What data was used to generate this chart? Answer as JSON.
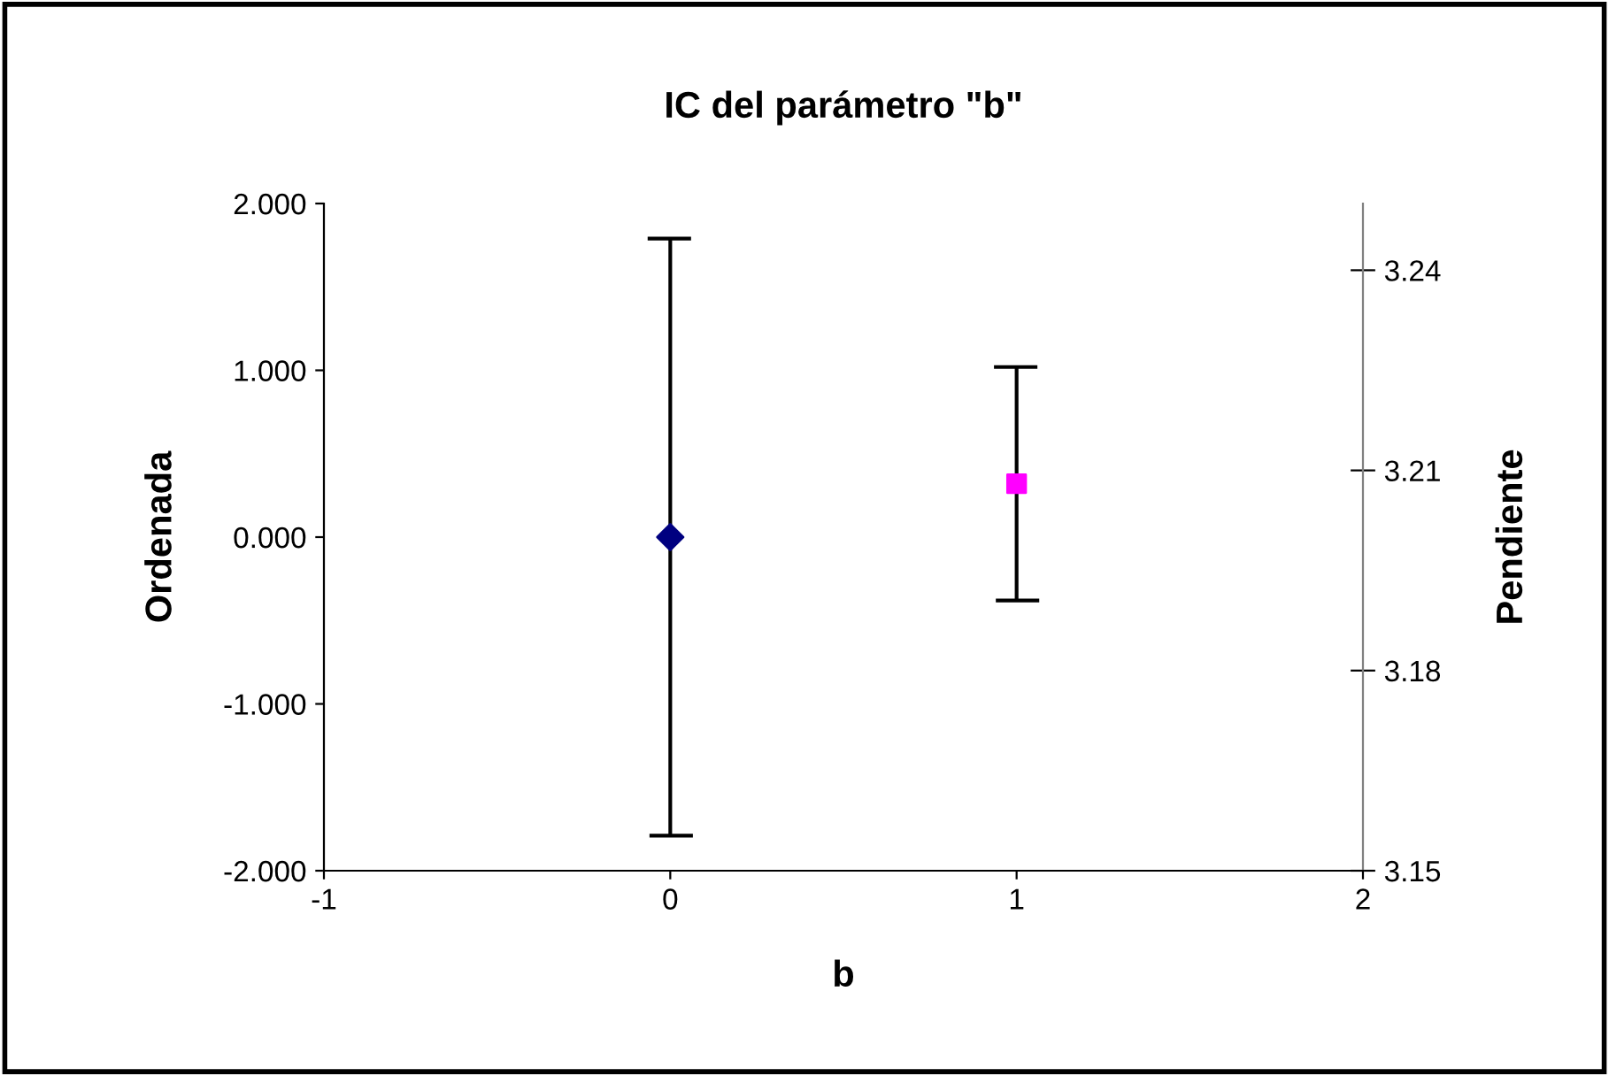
{
  "chart_data": {
    "type": "scatter",
    "title": "IC del parámetro \"b\"",
    "xlabel": "b",
    "ylabel": "Ordenada",
    "y2label": "Pendiente",
    "xlim": [
      -1,
      2
    ],
    "xticks": [
      -1,
      0,
      1,
      2
    ],
    "ylim": [
      -2,
      2
    ],
    "yticks": [
      {
        "value": -2,
        "label": "-2.000"
      },
      {
        "value": -1,
        "label": "-1.000"
      },
      {
        "value": 0,
        "label": "0.000"
      },
      {
        "value": 1,
        "label": "1.000"
      },
      {
        "value": 2,
        "label": "2.000"
      }
    ],
    "y2lim": [
      3.15,
      3.25
    ],
    "y2ticks": [
      3.15,
      3.18,
      3.21,
      3.24
    ],
    "grid": false,
    "legend": false,
    "series": [
      {
        "x": [
          0
        ],
        "values": [
          0
        ],
        "errors": [
          1.79
        ],
        "color": "#000080",
        "marker": "diamond"
      },
      {
        "x": [
          1
        ],
        "values": [
          3.208
        ],
        "errors": [
          0.0175
        ],
        "color": "#ff00ff",
        "marker": "square",
        "axis": "y2"
      }
    ]
  }
}
